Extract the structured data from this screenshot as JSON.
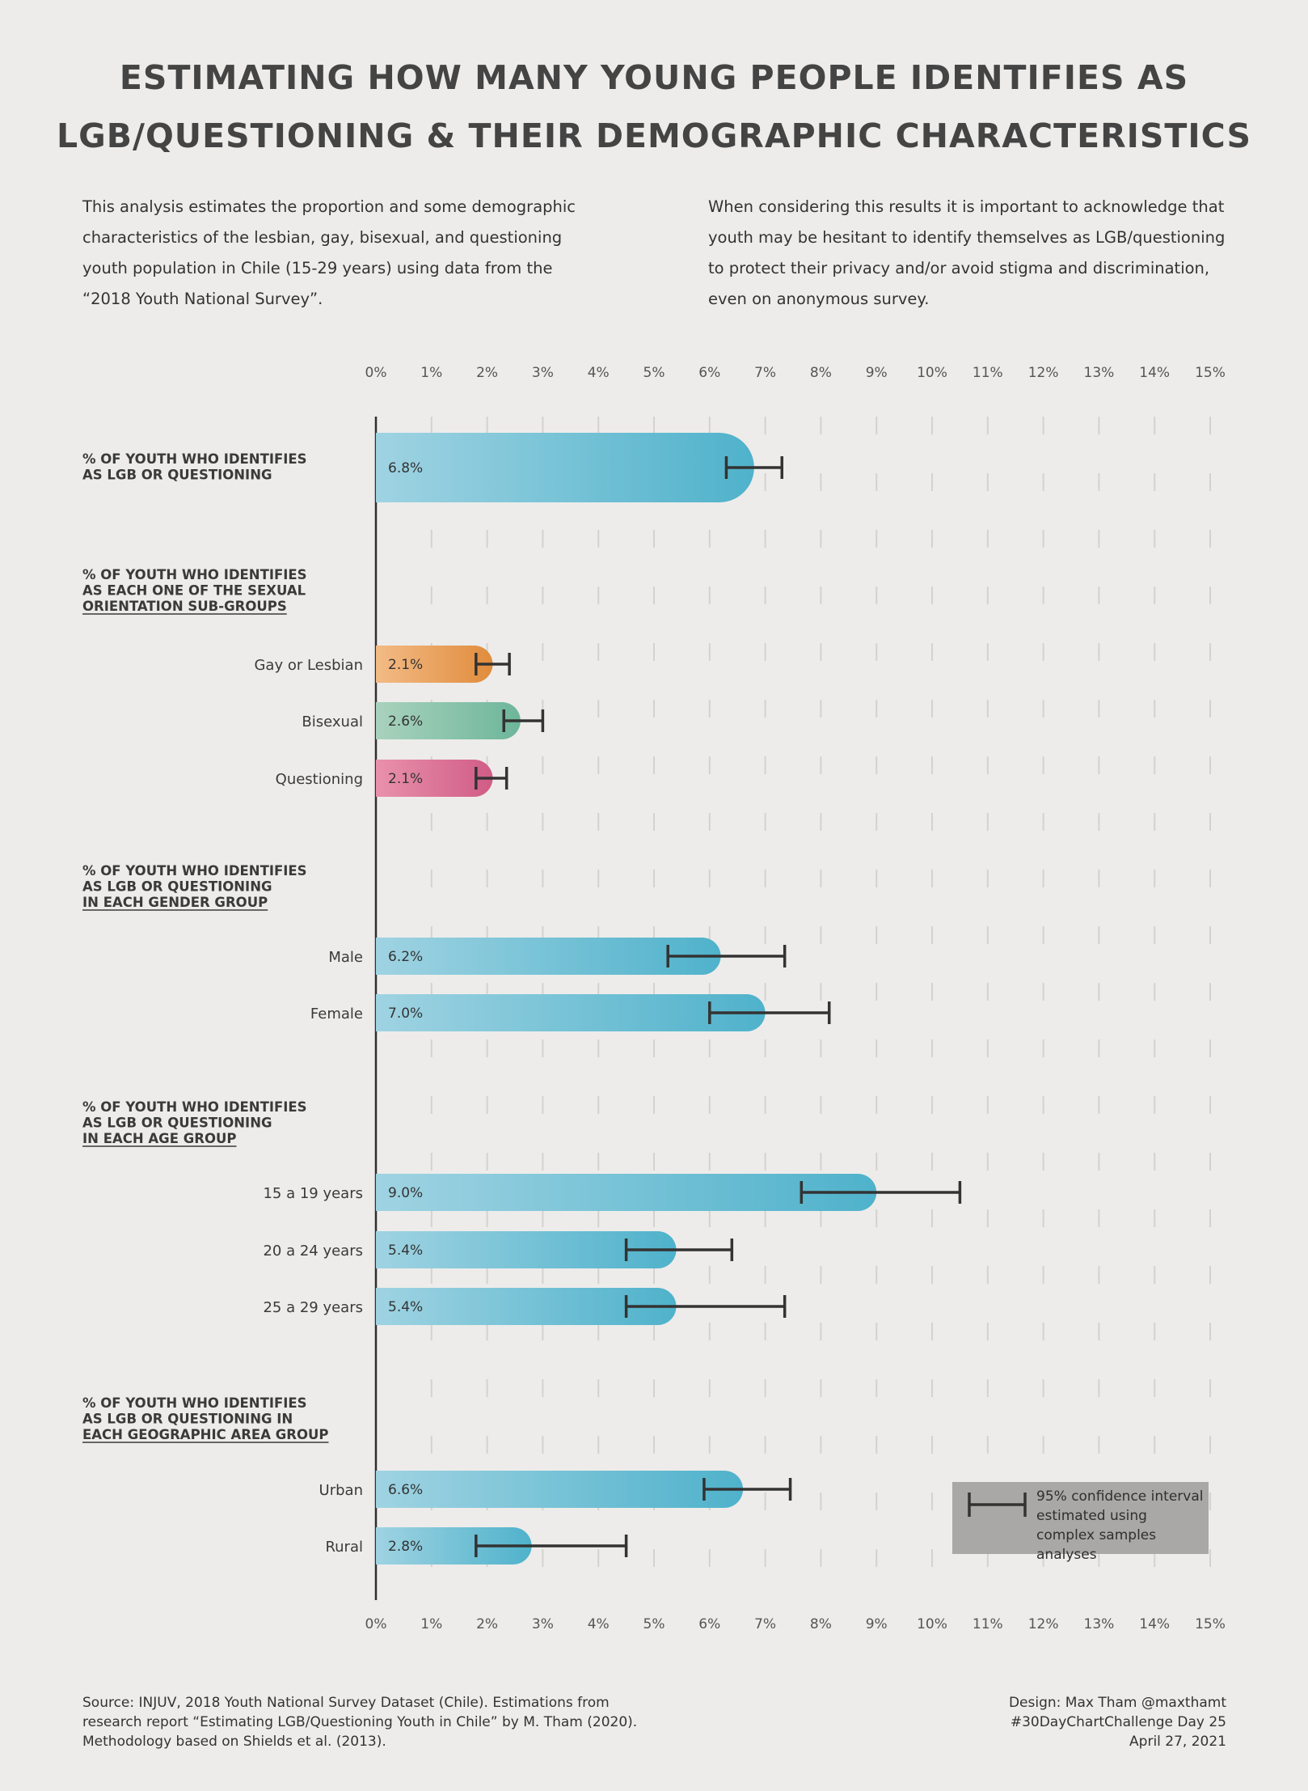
{
  "title": {
    "line1": "ESTIMATING HOW MANY YOUNG PEOPLE IDENTIFIES AS",
    "line2": "LGB/QUESTIONING & THEIR DEMOGRAPHIC CHARACTERISTICS"
  },
  "intro": {
    "left": "This analysis estimates the proportion and some demographic characteristics of the lesbian, gay, bisexual, and questioning youth population in Chile (15-29 years) using data from the “2018 Youth National Survey”.",
    "right": "When considering this results it is important to acknowledge that youth may be hesitant to identify themselves as LGB/questioning to protect their privacy and/or avoid stigma and discrimination, even on anonymous survey."
  },
  "legend": {
    "text": "95% confidence interval estimated using complex samples analyses"
  },
  "footer": {
    "source_line1": "Source: INJUV, 2018 Youth National Survey Dataset (Chile). Estimations from",
    "source_line2": "research report “Estimating LGB/Questioning Youth in Chile” by M. Tham (2020).",
    "source_line3": "Methodology based on Shields et al. (2013).",
    "credit_line1": "Design: Max Tham @maxthamt",
    "credit_line2": "#30DayChartChallenge Day 25",
    "credit_line3": "April 27, 2021"
  },
  "colors": {
    "blue_light": "#9fd3e2",
    "blue_dark": "#4fb2cb",
    "orange_light": "#f3bb86",
    "orange_dark": "#e08c3c",
    "green_light": "#a9d2bd",
    "green_dark": "#6db69a",
    "pink_light": "#e991ac",
    "pink_dark": "#d05c86",
    "error_bar": "#333333",
    "legend_bg": "#a9a8a6"
  },
  "chart_data": {
    "type": "bar",
    "orientation": "horizontal",
    "xlim": [
      0,
      15
    ],
    "x_ticks": [
      "0%",
      "1%",
      "2%",
      "3%",
      "4%",
      "5%",
      "6%",
      "7%",
      "8%",
      "9%",
      "10%",
      "11%",
      "12%",
      "13%",
      "14%",
      "15%"
    ],
    "grid": "dashed vertical",
    "groups": [
      {
        "heading": [
          "% OF YOUTH WHO IDENTIFIES",
          "AS LGB OR QUESTIONING"
        ],
        "underline_lines": [],
        "inline": true,
        "bars": [
          {
            "category": "",
            "value": 6.8,
            "label": "6.8%",
            "ci": [
              6.3,
              7.3
            ],
            "color": "blue"
          }
        ]
      },
      {
        "heading": [
          "% OF YOUTH WHO IDENTIFIES",
          "AS EACH ONE OF THE SEXUAL",
          "ORIENTATION SUB-GROUPS"
        ],
        "underline_lines": [
          2
        ],
        "inline": false,
        "bars": [
          {
            "category": "Gay or Lesbian",
            "value": 2.1,
            "label": "2.1%",
            "ci": [
              1.8,
              2.4
            ],
            "color": "orange"
          },
          {
            "category": "Bisexual",
            "value": 2.6,
            "label": "2.6%",
            "ci": [
              2.3,
              3.0
            ],
            "color": "green"
          },
          {
            "category": "Questioning",
            "value": 2.1,
            "label": "2.1%",
            "ci": [
              1.8,
              2.35
            ],
            "color": "pink"
          }
        ]
      },
      {
        "heading": [
          "% OF YOUTH WHO IDENTIFIES",
          "AS  LGB OR QUESTIONING",
          "IN EACH GENDER GROUP"
        ],
        "underline_lines": [
          2
        ],
        "inline": false,
        "bars": [
          {
            "category": "Male",
            "value": 6.2,
            "label": "6.2%",
            "ci": [
              5.25,
              7.35
            ],
            "color": "blue"
          },
          {
            "category": "Female",
            "value": 7.0,
            "label": "7.0%",
            "ci": [
              6.0,
              8.15
            ],
            "color": "blue"
          }
        ]
      },
      {
        "heading": [
          "% OF YOUTH WHO IDENTIFIES",
          "AS  LGB OR QUESTIONING",
          "IN EACH AGE GROUP"
        ],
        "underline_lines": [
          2
        ],
        "inline": false,
        "bars": [
          {
            "category": "15 a 19 years",
            "value": 9.0,
            "label": "9.0%",
            "ci": [
              7.65,
              10.5
            ],
            "color": "blue"
          },
          {
            "category": "20 a 24 years",
            "value": 5.4,
            "label": "5.4%",
            "ci": [
              4.5,
              6.4
            ],
            "color": "blue"
          },
          {
            "category": "25 a 29 years",
            "value": 5.4,
            "label": "5.4%",
            "ci": [
              4.5,
              7.35
            ],
            "color": "blue"
          }
        ]
      },
      {
        "heading": [
          "% OF YOUTH WHO IDENTIFIES",
          "AS  LGB OR QUESTIONING IN",
          "EACH GEOGRAPHIC AREA GROUP"
        ],
        "underline_lines": [
          2
        ],
        "inline": false,
        "bars": [
          {
            "category": "Urban",
            "value": 6.6,
            "label": "6.6%",
            "ci": [
              5.9,
              7.45
            ],
            "color": "blue"
          },
          {
            "category": "Rural",
            "value": 2.8,
            "label": "2.8%",
            "ci": [
              1.8,
              4.5
            ],
            "color": "blue"
          }
        ]
      }
    ]
  }
}
